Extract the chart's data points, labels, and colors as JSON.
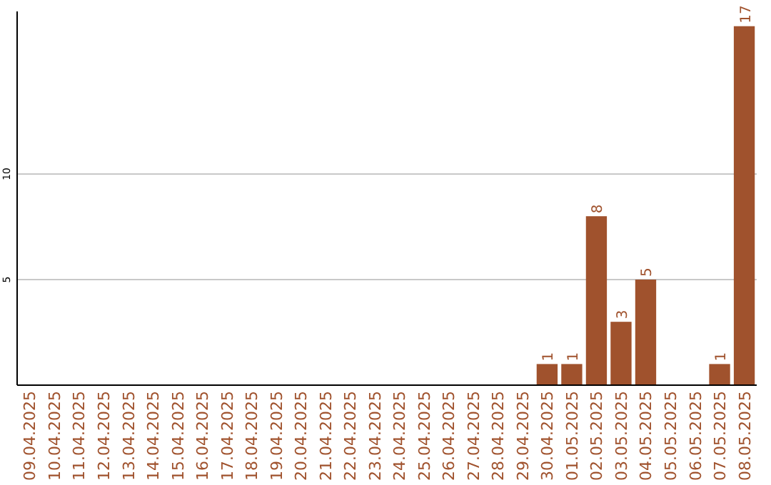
{
  "chart_data": {
    "type": "bar",
    "categories": [
      "09.04.2025",
      "10.04.2025",
      "11.04.2025",
      "12.04.2025",
      "13.04.2025",
      "14.04.2025",
      "15.04.2025",
      "16.04.2025",
      "17.04.2025",
      "18.04.2025",
      "19.04.2025",
      "20.04.2025",
      "21.04.2025",
      "22.04.2025",
      "23.04.2025",
      "24.04.2025",
      "25.04.2025",
      "26.04.2025",
      "27.04.2025",
      "28.04.2025",
      "29.04.2025",
      "30.04.2025",
      "01.05.2025",
      "02.05.2025",
      "03.05.2025",
      "04.05.2025",
      "05.05.2025",
      "06.05.2025",
      "07.05.2025",
      "08.05.2025"
    ],
    "values": [
      0,
      0,
      0,
      0,
      0,
      0,
      0,
      0,
      0,
      0,
      0,
      0,
      0,
      0,
      0,
      0,
      0,
      0,
      0,
      0,
      0,
      1,
      1,
      8,
      3,
      5,
      0,
      0,
      1,
      17
    ],
    "value_labels": [
      null,
      null,
      null,
      null,
      null,
      null,
      null,
      null,
      null,
      null,
      null,
      null,
      null,
      null,
      null,
      null,
      null,
      null,
      null,
      null,
      null,
      "1",
      "1",
      "8",
      "3",
      "5",
      null,
      null,
      "1",
      "17"
    ],
    "color": "#a0522d",
    "ylim": [
      0,
      17.7
    ],
    "yticks": [
      5,
      10
    ],
    "grid": "y"
  }
}
